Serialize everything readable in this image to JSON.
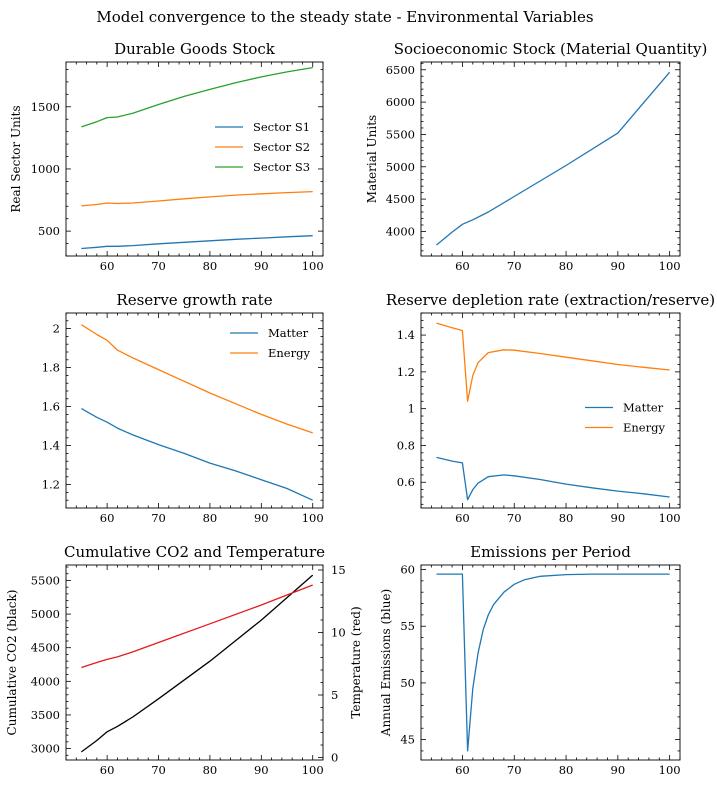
{
  "figure": {
    "suptitle": "Model convergence to the steady state - Environmental Variables"
  },
  "colors": {
    "blue": "#1f77b4",
    "orange": "#ff7f0e",
    "green": "#2ca02c",
    "red": "#e41a1c",
    "black": "#000000"
  },
  "chart_data": [
    {
      "id": "durable",
      "type": "line",
      "title": "Durable Goods Stock",
      "xlabel": "",
      "ylabel": "Real Sector Units",
      "xlim": [
        52,
        102
      ],
      "ylim": [
        300,
        1860
      ],
      "xticks": [
        60,
        70,
        80,
        90,
        100
      ],
      "yticks": [
        500,
        1000,
        1500
      ],
      "legend": "center-right",
      "series": [
        {
          "name": "Sector S1",
          "color": "blue",
          "x": [
            55,
            58,
            60,
            62,
            65,
            70,
            75,
            80,
            85,
            90,
            95,
            100
          ],
          "y": [
            360,
            370,
            378,
            378,
            384,
            398,
            410,
            422,
            434,
            444,
            454,
            463
          ]
        },
        {
          "name": "Sector S2",
          "color": "orange",
          "x": [
            55,
            58,
            60,
            62,
            65,
            70,
            75,
            80,
            85,
            90,
            95,
            100
          ],
          "y": [
            703,
            714,
            726,
            722,
            726,
            742,
            760,
            775,
            790,
            800,
            810,
            818
          ]
        },
        {
          "name": "Sector S3",
          "color": "green",
          "x": [
            55,
            58,
            60,
            62,
            65,
            70,
            75,
            80,
            85,
            90,
            95,
            100
          ],
          "y": [
            1338,
            1380,
            1413,
            1418,
            1448,
            1518,
            1583,
            1640,
            1693,
            1740,
            1780,
            1815
          ]
        }
      ]
    },
    {
      "id": "socio",
      "type": "line",
      "title": "Socioeconomic Stock (Material Quantity)",
      "xlabel": "",
      "ylabel": "Material Units",
      "xlim": [
        52,
        102
      ],
      "ylim": [
        3620,
        6620
      ],
      "xticks": [
        60,
        70,
        80,
        90,
        100
      ],
      "yticks": [
        4000,
        4500,
        5000,
        5500,
        6000,
        6500
      ],
      "series": [
        {
          "name": "",
          "color": "blue",
          "x": [
            55,
            58,
            60,
            62,
            65,
            70,
            80,
            90,
            100
          ],
          "y": [
            3790,
            3990,
            4110,
            4180,
            4300,
            4540,
            5020,
            5520,
            6460
          ]
        }
      ]
    },
    {
      "id": "growth",
      "type": "line",
      "title": "Reserve growth rate",
      "xlabel": "",
      "ylabel": "",
      "xlim": [
        52,
        102
      ],
      "ylim": [
        1.08,
        2.08
      ],
      "xticks": [
        60,
        70,
        80,
        90,
        100
      ],
      "yticks": [
        1.2,
        1.4,
        1.6,
        1.8,
        2.0
      ],
      "legend": "top-right",
      "series": [
        {
          "name": "Matter",
          "color": "blue",
          "x": [
            55,
            58,
            60,
            62,
            65,
            70,
            75,
            80,
            85,
            90,
            95,
            100
          ],
          "y": [
            1.59,
            1.545,
            1.52,
            1.49,
            1.455,
            1.405,
            1.36,
            1.31,
            1.27,
            1.225,
            1.18,
            1.12
          ]
        },
        {
          "name": "Energy",
          "color": "orange",
          "x": [
            55,
            58,
            60,
            62,
            65,
            70,
            75,
            80,
            85,
            90,
            95,
            100
          ],
          "y": [
            2.02,
            1.97,
            1.94,
            1.89,
            1.85,
            1.79,
            1.73,
            1.67,
            1.615,
            1.56,
            1.51,
            1.465
          ]
        }
      ]
    },
    {
      "id": "depletion",
      "type": "line",
      "title": "Reserve depletion rate (extraction/reserve)",
      "xlabel": "",
      "ylabel": "",
      "xlim": [
        52,
        102
      ],
      "ylim": [
        0.46,
        1.52
      ],
      "xticks": [
        60,
        70,
        80,
        90,
        100
      ],
      "yticks": [
        0.6,
        0.8,
        1.0,
        1.2,
        1.4
      ],
      "legend": "center-right",
      "series": [
        {
          "name": "Matter",
          "color": "blue",
          "x": [
            55,
            58,
            60,
            61,
            62,
            63,
            65,
            68,
            70,
            75,
            80,
            85,
            90,
            95,
            100
          ],
          "y": [
            0.735,
            0.715,
            0.705,
            0.505,
            0.56,
            0.595,
            0.63,
            0.64,
            0.635,
            0.615,
            0.59,
            0.57,
            0.552,
            0.537,
            0.52
          ]
        },
        {
          "name": "Energy",
          "color": "orange",
          "x": [
            55,
            58,
            60,
            61,
            62,
            63,
            65,
            68,
            70,
            75,
            80,
            85,
            90,
            95,
            100
          ],
          "y": [
            1.465,
            1.44,
            1.425,
            1.04,
            1.18,
            1.25,
            1.305,
            1.32,
            1.318,
            1.3,
            1.28,
            1.26,
            1.24,
            1.225,
            1.21
          ]
        }
      ]
    },
    {
      "id": "co2temp",
      "type": "line",
      "title": "Cumulative CO2 and Temperature",
      "xlabel": "",
      "ylabel": "Cumulative CO2 (black)",
      "ylabel_right": "Temperature (red)",
      "xlim": [
        52,
        102
      ],
      "ylim": [
        2830,
        5730
      ],
      "ylim_right": [
        -0.2,
        15.4
      ],
      "xticks": [
        60,
        70,
        80,
        90,
        100
      ],
      "yticks": [
        3000,
        3500,
        4000,
        4500,
        5000,
        5500
      ],
      "yticks_right": [
        0,
        5,
        10,
        15
      ],
      "series": [
        {
          "name": "",
          "color": "black",
          "axis": "left",
          "x": [
            55,
            58,
            60,
            62,
            65,
            70,
            80,
            90,
            100
          ],
          "y": [
            2950,
            3120,
            3250,
            3330,
            3470,
            3740,
            4300,
            4910,
            5580
          ]
        },
        {
          "name": "",
          "color": "red",
          "axis": "right",
          "x": [
            55,
            58,
            60,
            62,
            65,
            70,
            80,
            90,
            100
          ],
          "y": [
            7.2,
            7.6,
            7.85,
            8.05,
            8.45,
            9.2,
            10.7,
            12.2,
            13.8
          ]
        }
      ]
    },
    {
      "id": "emissions",
      "type": "line",
      "title": "Emissions per Period",
      "xlabel": "",
      "ylabel": "Annual Emissions (blue)",
      "xlim": [
        52,
        102
      ],
      "ylim": [
        43.2,
        60.4
      ],
      "xticks": [
        60,
        70,
        80,
        90,
        100
      ],
      "yticks": [
        45,
        50,
        55,
        60
      ],
      "series": [
        {
          "name": "",
          "color": "blue",
          "x": [
            55,
            58,
            60,
            61,
            62,
            63,
            64,
            65,
            66,
            68,
            70,
            72,
            75,
            80,
            85,
            90,
            100
          ],
          "y": [
            59.6,
            59.6,
            59.6,
            44.0,
            49.5,
            52.6,
            54.7,
            56.0,
            56.9,
            58.0,
            58.7,
            59.1,
            59.4,
            59.55,
            59.6,
            59.6,
            59.6
          ]
        }
      ]
    }
  ]
}
